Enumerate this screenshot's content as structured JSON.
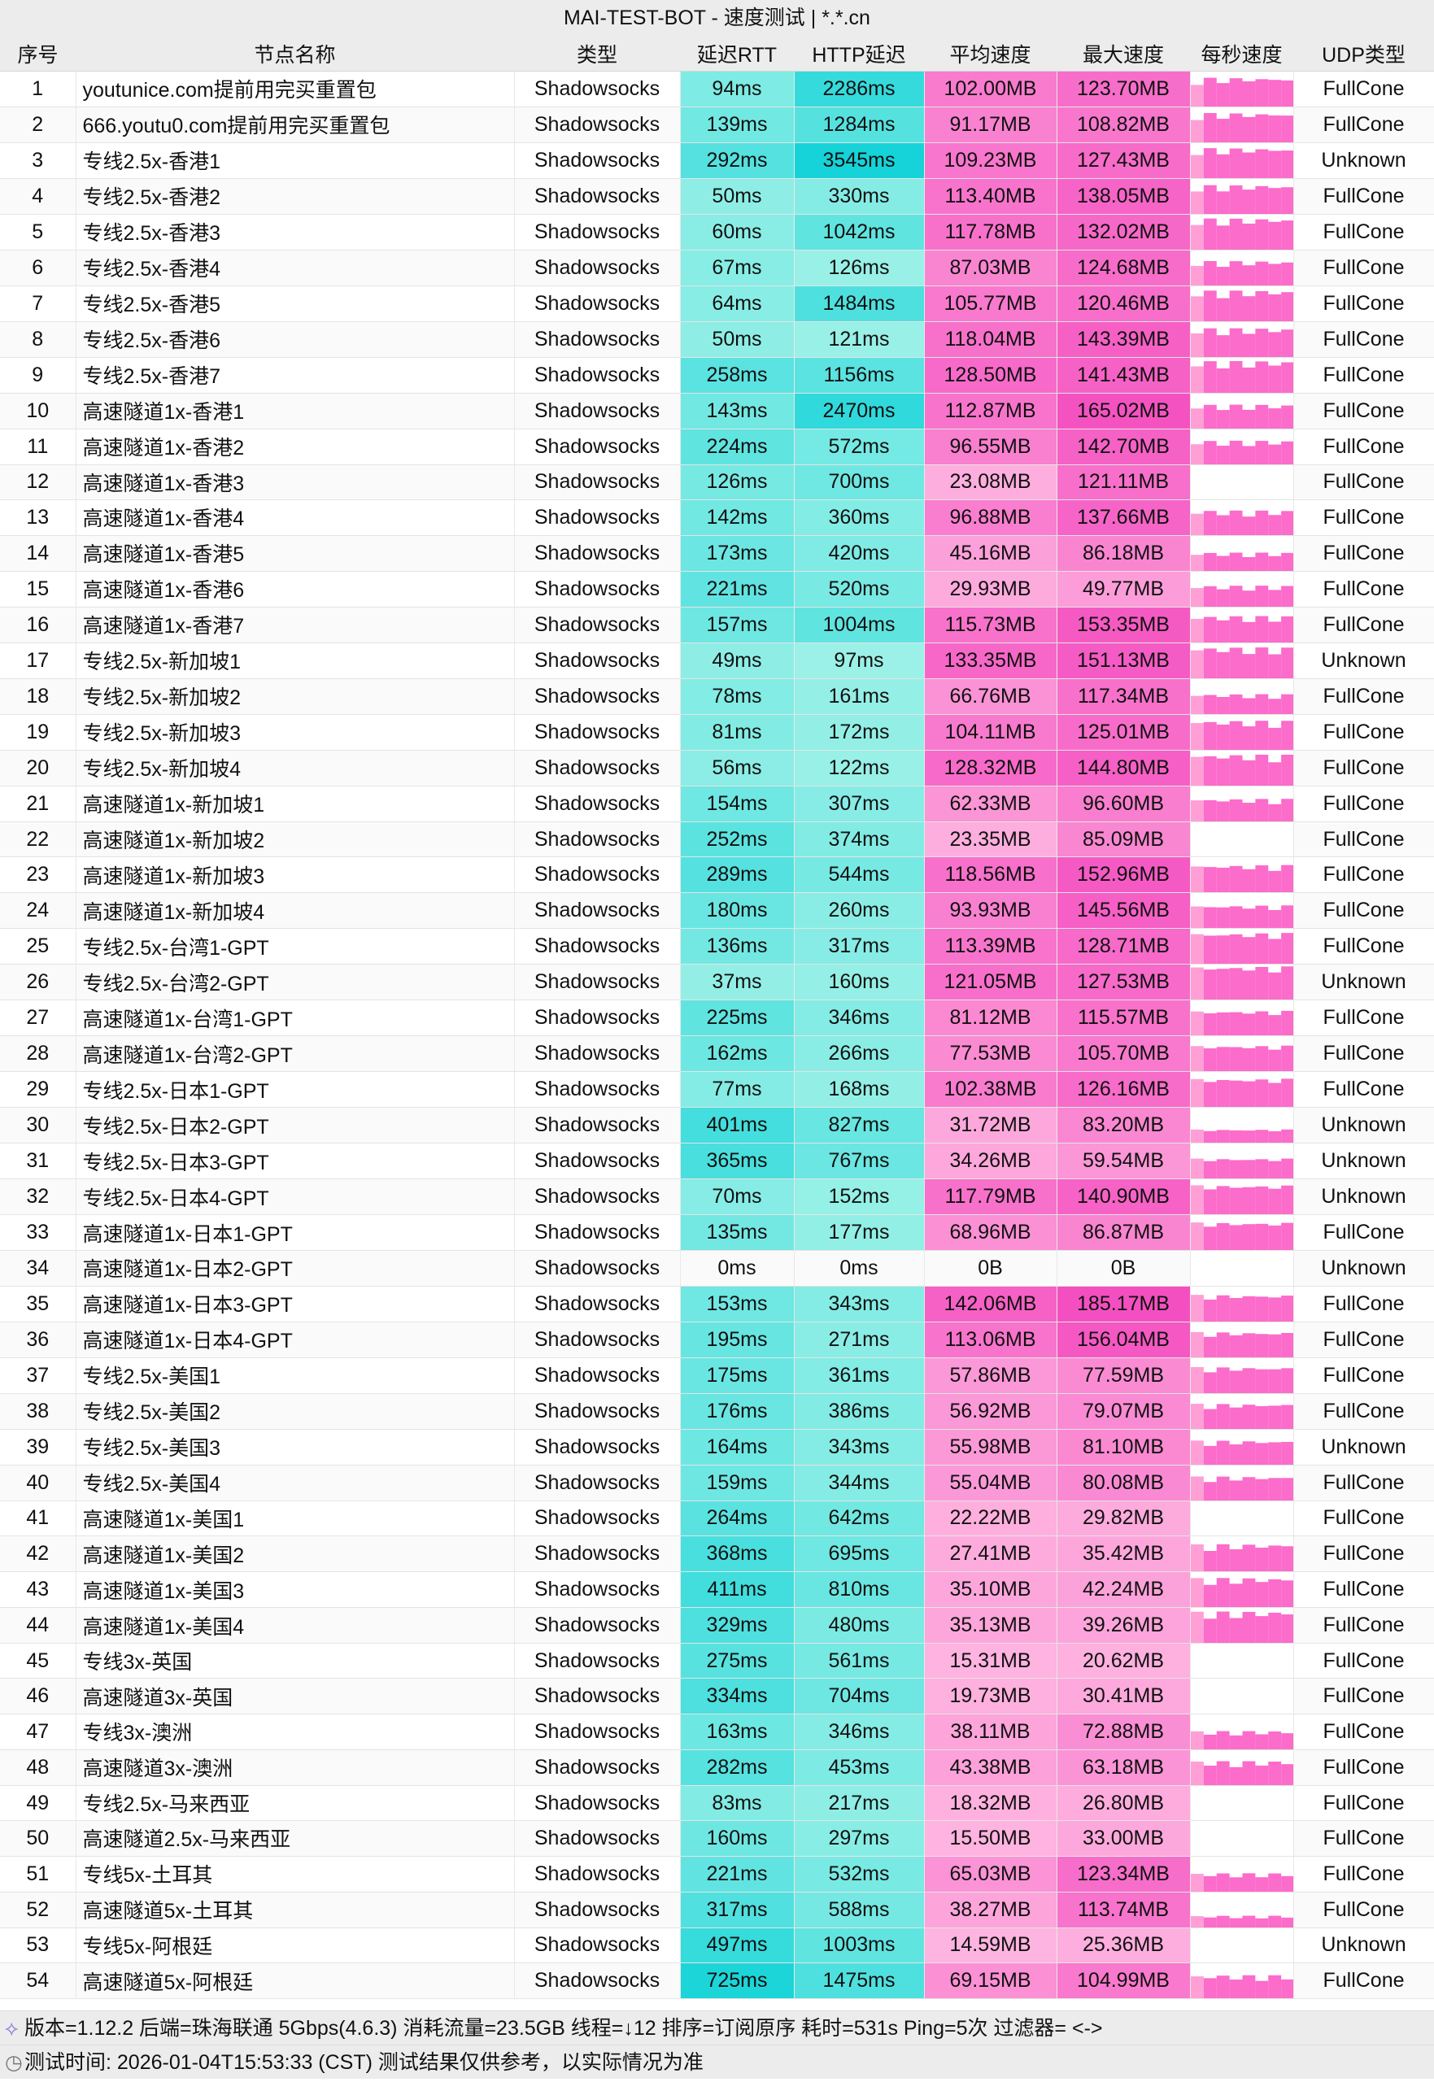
{
  "title": "MAI-TEST-BOT - 速度测试 | *.*.cn",
  "columns": [
    "序号",
    "节点名称",
    "类型",
    "延迟RTT",
    "HTTP延迟",
    "平均速度",
    "最大速度",
    "每秒速度",
    "UDP类型"
  ],
  "colors": {
    "latency_low": "#b6f7ea",
    "latency_high": "#14d3d8",
    "speed_low": "#ffbde3",
    "speed_high": "#f44fc0"
  },
  "rows": [
    [
      "1",
      "youtunice.com提前用完买重置包",
      "Shadowsocks",
      "94ms",
      "2286ms",
      "102.00MB",
      "123.70MB",
      "FullCone"
    ],
    [
      "2",
      "666.youtu0.com提前用完买重置包",
      "Shadowsocks",
      "139ms",
      "1284ms",
      "91.17MB",
      "108.82MB",
      "FullCone"
    ],
    [
      "3",
      "专线2.5x-香港1",
      "Shadowsocks",
      "292ms",
      "3545ms",
      "109.23MB",
      "127.43MB",
      "Unknown"
    ],
    [
      "4",
      "专线2.5x-香港2",
      "Shadowsocks",
      "50ms",
      "330ms",
      "113.40MB",
      "138.05MB",
      "FullCone"
    ],
    [
      "5",
      "专线2.5x-香港3",
      "Shadowsocks",
      "60ms",
      "1042ms",
      "117.78MB",
      "132.02MB",
      "FullCone"
    ],
    [
      "6",
      "专线2.5x-香港4",
      "Shadowsocks",
      "67ms",
      "126ms",
      "87.03MB",
      "124.68MB",
      "FullCone"
    ],
    [
      "7",
      "专线2.5x-香港5",
      "Shadowsocks",
      "64ms",
      "1484ms",
      "105.77MB",
      "120.46MB",
      "FullCone"
    ],
    [
      "8",
      "专线2.5x-香港6",
      "Shadowsocks",
      "50ms",
      "121ms",
      "118.04MB",
      "143.39MB",
      "FullCone"
    ],
    [
      "9",
      "专线2.5x-香港7",
      "Shadowsocks",
      "258ms",
      "1156ms",
      "128.50MB",
      "141.43MB",
      "FullCone"
    ],
    [
      "10",
      "高速隧道1x-香港1",
      "Shadowsocks",
      "143ms",
      "2470ms",
      "112.87MB",
      "165.02MB",
      "FullCone"
    ],
    [
      "11",
      "高速隧道1x-香港2",
      "Shadowsocks",
      "224ms",
      "572ms",
      "96.55MB",
      "142.70MB",
      "FullCone"
    ],
    [
      "12",
      "高速隧道1x-香港3",
      "Shadowsocks",
      "126ms",
      "700ms",
      "23.08MB",
      "121.11MB",
      "FullCone"
    ],
    [
      "13",
      "高速隧道1x-香港4",
      "Shadowsocks",
      "142ms",
      "360ms",
      "96.88MB",
      "137.66MB",
      "FullCone"
    ],
    [
      "14",
      "高速隧道1x-香港5",
      "Shadowsocks",
      "173ms",
      "420ms",
      "45.16MB",
      "86.18MB",
      "FullCone"
    ],
    [
      "15",
      "高速隧道1x-香港6",
      "Shadowsocks",
      "221ms",
      "520ms",
      "29.93MB",
      "49.77MB",
      "FullCone"
    ],
    [
      "16",
      "高速隧道1x-香港7",
      "Shadowsocks",
      "157ms",
      "1004ms",
      "115.73MB",
      "153.35MB",
      "FullCone"
    ],
    [
      "17",
      "专线2.5x-新加坡1",
      "Shadowsocks",
      "49ms",
      "97ms",
      "133.35MB",
      "151.13MB",
      "Unknown"
    ],
    [
      "18",
      "专线2.5x-新加坡2",
      "Shadowsocks",
      "78ms",
      "161ms",
      "66.76MB",
      "117.34MB",
      "FullCone"
    ],
    [
      "19",
      "专线2.5x-新加坡3",
      "Shadowsocks",
      "81ms",
      "172ms",
      "104.11MB",
      "125.01MB",
      "FullCone"
    ],
    [
      "20",
      "专线2.5x-新加坡4",
      "Shadowsocks",
      "56ms",
      "122ms",
      "128.32MB",
      "144.80MB",
      "FullCone"
    ],
    [
      "21",
      "高速隧道1x-新加坡1",
      "Shadowsocks",
      "154ms",
      "307ms",
      "62.33MB",
      "96.60MB",
      "FullCone"
    ],
    [
      "22",
      "高速隧道1x-新加坡2",
      "Shadowsocks",
      "252ms",
      "374ms",
      "23.35MB",
      "85.09MB",
      "FullCone"
    ],
    [
      "23",
      "高速隧道1x-新加坡3",
      "Shadowsocks",
      "289ms",
      "544ms",
      "118.56MB",
      "152.96MB",
      "FullCone"
    ],
    [
      "24",
      "高速隧道1x-新加坡4",
      "Shadowsocks",
      "180ms",
      "260ms",
      "93.93MB",
      "145.56MB",
      "FullCone"
    ],
    [
      "25",
      "专线2.5x-台湾1-GPT",
      "Shadowsocks",
      "136ms",
      "317ms",
      "113.39MB",
      "128.71MB",
      "FullCone"
    ],
    [
      "26",
      "专线2.5x-台湾2-GPT",
      "Shadowsocks",
      "37ms",
      "160ms",
      "121.05MB",
      "127.53MB",
      "Unknown"
    ],
    [
      "27",
      "高速隧道1x-台湾1-GPT",
      "Shadowsocks",
      "225ms",
      "346ms",
      "81.12MB",
      "115.57MB",
      "FullCone"
    ],
    [
      "28",
      "高速隧道1x-台湾2-GPT",
      "Shadowsocks",
      "162ms",
      "266ms",
      "77.53MB",
      "105.70MB",
      "FullCone"
    ],
    [
      "29",
      "专线2.5x-日本1-GPT",
      "Shadowsocks",
      "77ms",
      "168ms",
      "102.38MB",
      "126.16MB",
      "FullCone"
    ],
    [
      "30",
      "专线2.5x-日本2-GPT",
      "Shadowsocks",
      "401ms",
      "827ms",
      "31.72MB",
      "83.20MB",
      "Unknown"
    ],
    [
      "31",
      "专线2.5x-日本3-GPT",
      "Shadowsocks",
      "365ms",
      "767ms",
      "34.26MB",
      "59.54MB",
      "Unknown"
    ],
    [
      "32",
      "专线2.5x-日本4-GPT",
      "Shadowsocks",
      "70ms",
      "152ms",
      "117.79MB",
      "140.90MB",
      "Unknown"
    ],
    [
      "33",
      "高速隧道1x-日本1-GPT",
      "Shadowsocks",
      "135ms",
      "177ms",
      "68.96MB",
      "86.87MB",
      "FullCone"
    ],
    [
      "34",
      "高速隧道1x-日本2-GPT",
      "Shadowsocks",
      "0ms",
      "0ms",
      "0B",
      "0B",
      "Unknown"
    ],
    [
      "35",
      "高速隧道1x-日本3-GPT",
      "Shadowsocks",
      "153ms",
      "343ms",
      "142.06MB",
      "185.17MB",
      "FullCone"
    ],
    [
      "36",
      "高速隧道1x-日本4-GPT",
      "Shadowsocks",
      "195ms",
      "271ms",
      "113.06MB",
      "156.04MB",
      "FullCone"
    ],
    [
      "37",
      "专线2.5x-美国1",
      "Shadowsocks",
      "175ms",
      "361ms",
      "57.86MB",
      "77.59MB",
      "FullCone"
    ],
    [
      "38",
      "专线2.5x-美国2",
      "Shadowsocks",
      "176ms",
      "386ms",
      "56.92MB",
      "79.07MB",
      "FullCone"
    ],
    [
      "39",
      "专线2.5x-美国3",
      "Shadowsocks",
      "164ms",
      "343ms",
      "55.98MB",
      "81.10MB",
      "Unknown"
    ],
    [
      "40",
      "专线2.5x-美国4",
      "Shadowsocks",
      "159ms",
      "344ms",
      "55.04MB",
      "80.08MB",
      "FullCone"
    ],
    [
      "41",
      "高速隧道1x-美国1",
      "Shadowsocks",
      "264ms",
      "642ms",
      "22.22MB",
      "29.82MB",
      "FullCone"
    ],
    [
      "42",
      "高速隧道1x-美国2",
      "Shadowsocks",
      "368ms",
      "695ms",
      "27.41MB",
      "35.42MB",
      "FullCone"
    ],
    [
      "43",
      "高速隧道1x-美国3",
      "Shadowsocks",
      "411ms",
      "810ms",
      "35.10MB",
      "42.24MB",
      "FullCone"
    ],
    [
      "44",
      "高速隧道1x-美国4",
      "Shadowsocks",
      "329ms",
      "480ms",
      "35.13MB",
      "39.26MB",
      "FullCone"
    ],
    [
      "45",
      "专线3x-英国",
      "Shadowsocks",
      "275ms",
      "561ms",
      "15.31MB",
      "20.62MB",
      "FullCone"
    ],
    [
      "46",
      "高速隧道3x-英国",
      "Shadowsocks",
      "334ms",
      "704ms",
      "19.73MB",
      "30.41MB",
      "FullCone"
    ],
    [
      "47",
      "专线3x-澳洲",
      "Shadowsocks",
      "163ms",
      "346ms",
      "38.11MB",
      "72.88MB",
      "FullCone"
    ],
    [
      "48",
      "高速隧道3x-澳洲",
      "Shadowsocks",
      "282ms",
      "453ms",
      "43.38MB",
      "63.18MB",
      "FullCone"
    ],
    [
      "49",
      "专线2.5x-马来西亚",
      "Shadowsocks",
      "83ms",
      "217ms",
      "18.32MB",
      "26.80MB",
      "FullCone"
    ],
    [
      "50",
      "高速隧道2.5x-马来西亚",
      "Shadowsocks",
      "160ms",
      "297ms",
      "15.50MB",
      "33.00MB",
      "FullCone"
    ],
    [
      "51",
      "专线5x-土耳其",
      "Shadowsocks",
      "221ms",
      "532ms",
      "65.03MB",
      "123.34MB",
      "FullCone"
    ],
    [
      "52",
      "高速隧道5x-土耳其",
      "Shadowsocks",
      "317ms",
      "588ms",
      "38.27MB",
      "113.74MB",
      "FullCone"
    ],
    [
      "53",
      "专线5x-阿根廷",
      "Shadowsocks",
      "497ms",
      "1003ms",
      "14.59MB",
      "25.36MB",
      "Unknown"
    ],
    [
      "54",
      "高速隧道5x-阿根廷",
      "Shadowsocks",
      "725ms",
      "1475ms",
      "69.15MB",
      "104.99MB",
      "FullCone"
    ]
  ],
  "footer": {
    "line1": "版本=1.12.2  后端=珠海联通 5Gbps(4.6.3) 消耗流量=23.5GB  线程=↓12  排序=订阅原序  耗时=531s  Ping=5次  过滤器= <->",
    "line2": "测试时间: 2026-01-04T15:53:33 (CST)  测试结果仅供参考，以实际情况为准",
    "icon1": "dna-icon",
    "icon2": "clock-icon"
  }
}
